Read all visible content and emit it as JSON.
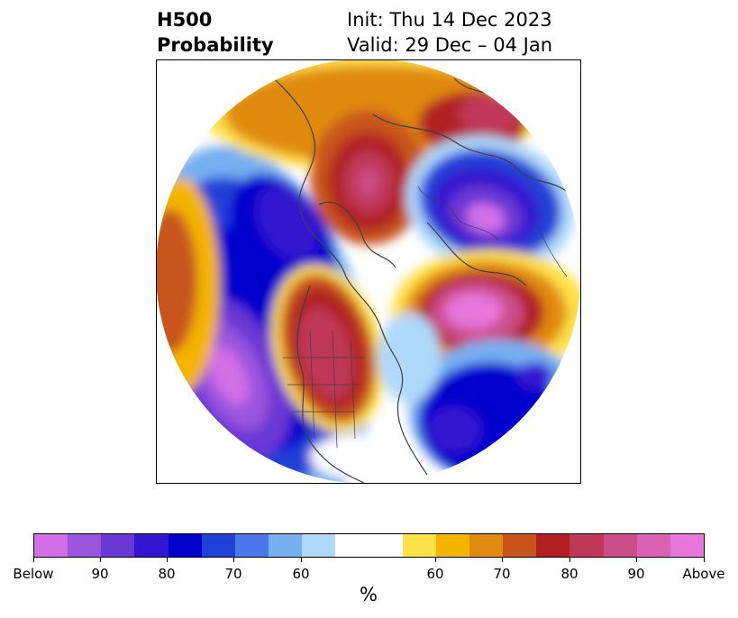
{
  "header": {
    "title_line1": "H500",
    "title_line2": "Probability",
    "init_text": "Init: Thu 14 Dec 2023",
    "valid_text": "Valid: 29 Dec – 04 Jan"
  },
  "colorbar": {
    "label": "%",
    "tick_labels": [
      "Below",
      "90",
      "80",
      "70",
      "60",
      "60",
      "70",
      "80",
      "90",
      "Above"
    ],
    "colors": [
      "#d26fe6",
      "#9a55de",
      "#6a39d4",
      "#3415cf",
      "#0000cc",
      "#2040d8",
      "#4a78e8",
      "#76b0f2",
      "#aed9fb",
      "#ffffff",
      "#ffe14a",
      "#f4b400",
      "#e08a10",
      "#c8541a",
      "#b02020",
      "#c03858",
      "#cc4e88",
      "#da62b4",
      "#e876dc"
    ]
  },
  "map": {
    "projection": "north-polar-stereographic",
    "colors": {
      "below_strong": "#d26fe6",
      "below_mid": "#3415cf",
      "below_weak": "#aed9fb",
      "above_weak": "#ffe14a",
      "above_mid": "#e08a10",
      "above_strong": "#e876dc"
    }
  }
}
